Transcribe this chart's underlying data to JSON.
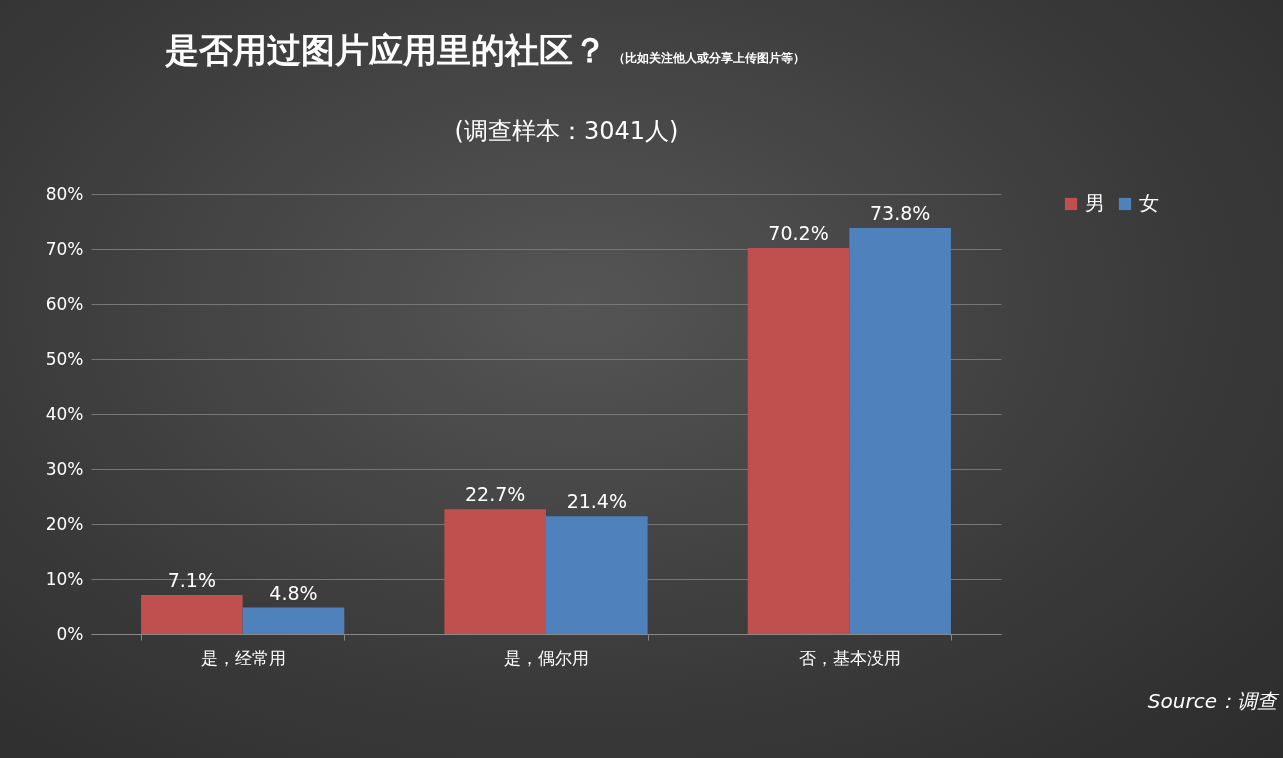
{
  "chart_data": {
    "type": "bar",
    "title": "是否用过图片应用里的社区？",
    "subtitle": "(调查样本：3041人)",
    "annotations": [
      "（比如关注他人或分享上传图片等）",
      "Source：调查"
    ],
    "categories": [
      "是，经常用",
      "是，偶尔用",
      "否，基本没用"
    ],
    "series": [
      {
        "name": "男",
        "color": "#c0504d",
        "values": [
          7.1,
          22.7,
          70.2
        ],
        "value_labels": [
          "7.1%",
          "22.7%",
          "70.2%"
        ]
      },
      {
        "name": "女",
        "color": "#4f81bd",
        "values": [
          4.8,
          21.4,
          73.8
        ],
        "value_labels": [
          "4.8%",
          "21.4%",
          "73.8%"
        ]
      }
    ],
    "ylim": [
      0,
      80
    ],
    "yticks": [
      {
        "value": 0,
        "label": "0%"
      },
      {
        "value": 10,
        "label": "10%"
      },
      {
        "value": 20,
        "label": "20%"
      },
      {
        "value": 30,
        "label": "30%"
      },
      {
        "value": 40,
        "label": "40%"
      },
      {
        "value": 50,
        "label": "50%"
      },
      {
        "value": 60,
        "label": "60%"
      },
      {
        "value": 70,
        "label": "70%"
      },
      {
        "value": 80,
        "label": "80%"
      }
    ],
    "grid": "y",
    "legend": "right"
  }
}
